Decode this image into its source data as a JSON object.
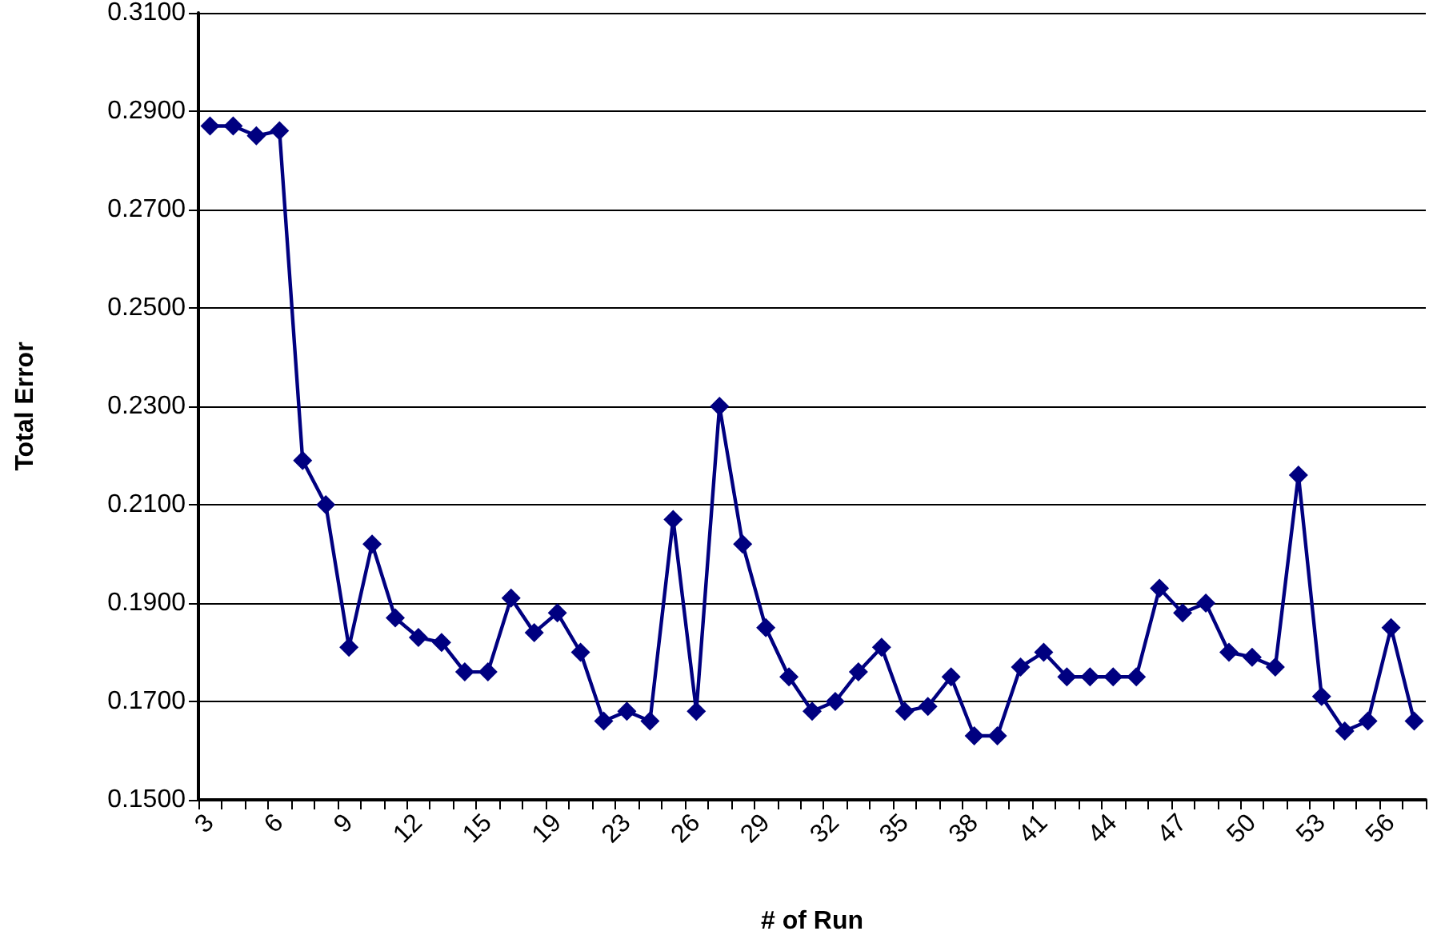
{
  "chart_data": {
    "type": "line",
    "xlabel": "# of Run",
    "ylabel": "Total Error",
    "categories": [
      "3",
      null,
      null,
      "6",
      null,
      null,
      "9",
      null,
      null,
      "12",
      null,
      null,
      "15",
      null,
      null,
      "19",
      null,
      null,
      "23",
      null,
      null,
      "26",
      null,
      null,
      "29",
      null,
      null,
      "32",
      null,
      null,
      "35",
      null,
      null,
      "38",
      null,
      null,
      "41",
      null,
      null,
      "44",
      null,
      null,
      "47",
      null,
      null,
      "50",
      null,
      null,
      "53",
      null,
      null,
      "56",
      null
    ],
    "series": [
      {
        "color": "#000080",
        "values": [
          0.287,
          0.287,
          0.285,
          0.286,
          0.219,
          0.21,
          0.181,
          0.202,
          0.187,
          0.183,
          0.182,
          0.176,
          0.176,
          0.191,
          0.184,
          0.188,
          0.18,
          0.166,
          0.168,
          0.166,
          0.207,
          0.168,
          0.23,
          0.202,
          0.185,
          0.175,
          0.168,
          0.17,
          0.176,
          0.181,
          0.168,
          0.169,
          0.175,
          0.163,
          0.163,
          0.177,
          0.18,
          0.175,
          0.175,
          0.175,
          0.175,
          0.193,
          0.188,
          0.19,
          0.18,
          0.179,
          0.177,
          0.216,
          0.171,
          0.164,
          0.166,
          0.185,
          0.166
        ]
      }
    ],
    "ylim": [
      0.15,
      0.31
    ],
    "yticks": [
      {
        "value": 0.15,
        "label": "0.1500"
      },
      {
        "value": 0.17,
        "label": "0.1700"
      },
      {
        "value": 0.19,
        "label": "0.1900"
      },
      {
        "value": 0.21,
        "label": "0.2100"
      },
      {
        "value": 0.23,
        "label": "0.2300"
      },
      {
        "value": 0.25,
        "label": "0.2500"
      },
      {
        "value": 0.27,
        "label": "0.2700"
      },
      {
        "value": 0.29,
        "label": "0.2900"
      },
      {
        "value": 0.31,
        "label": "0.3100"
      }
    ],
    "grid": "y",
    "marker": "diamond",
    "line_style": "solid"
  }
}
